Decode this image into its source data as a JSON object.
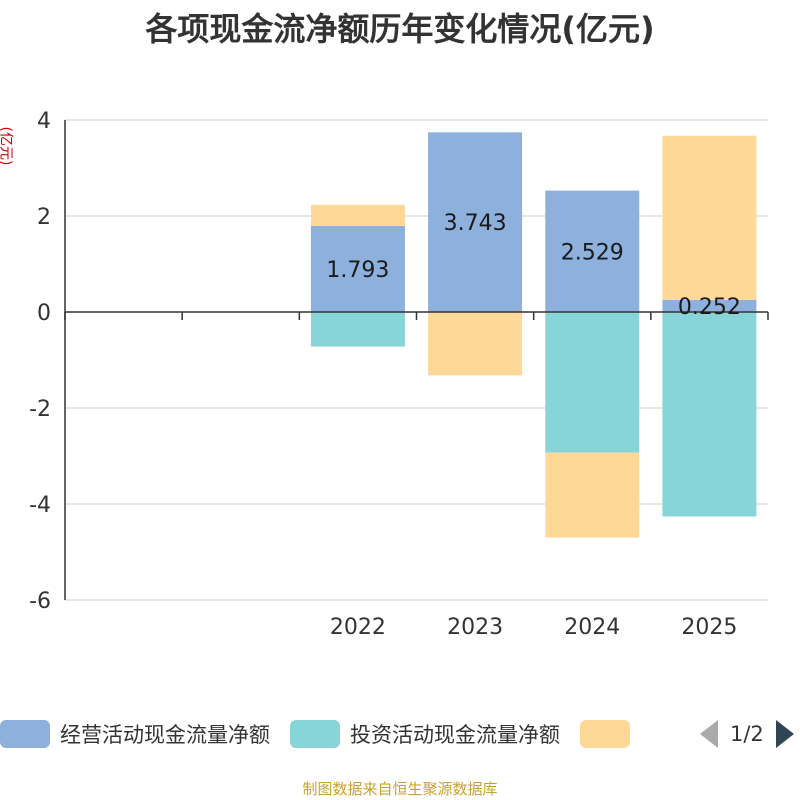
{
  "title": "各项现金流净额历年变化情况(亿元)",
  "unit_label": "(亿元)",
  "source_note": "制图数据来自恒生聚源数据库",
  "legend": {
    "items": [
      {
        "label": "经营活动现金流量净额",
        "color": "#8eb0dc"
      },
      {
        "label": "投资活动现金流量净额",
        "color": "#87d5d8"
      },
      {
        "label": "",
        "color": "#fed897"
      }
    ],
    "page_text": "1/2"
  },
  "chart_data": {
    "type": "bar",
    "stacked": true,
    "title": "各项现金流净额历年变化情况(亿元)",
    "ylabel": "(亿元)",
    "xlabel": "",
    "categories": [
      "",
      "",
      "2022",
      "2023",
      "2024",
      "2025"
    ],
    "ylim": [
      -6,
      4
    ],
    "yticks": [
      4,
      2,
      0,
      -2,
      -4,
      -6
    ],
    "grid": true,
    "series": [
      {
        "name": "经营活动现金流量净额",
        "color": "#8eb0dc",
        "values": [
          null,
          null,
          1.793,
          3.743,
          2.529,
          0.252
        ],
        "labels": [
          "",
          "",
          "1.793",
          "3.743",
          "2.529",
          "0.252"
        ]
      },
      {
        "name": "投资活动现金流量净额",
        "color": "#87d5d8",
        "values": [
          null,
          null,
          -0.72,
          0,
          -2.93,
          -4.26
        ]
      },
      {
        "name": "",
        "color": "#fed897",
        "values": [
          null,
          null,
          0.44,
          -1.32,
          -1.77,
          3.42
        ]
      }
    ]
  }
}
